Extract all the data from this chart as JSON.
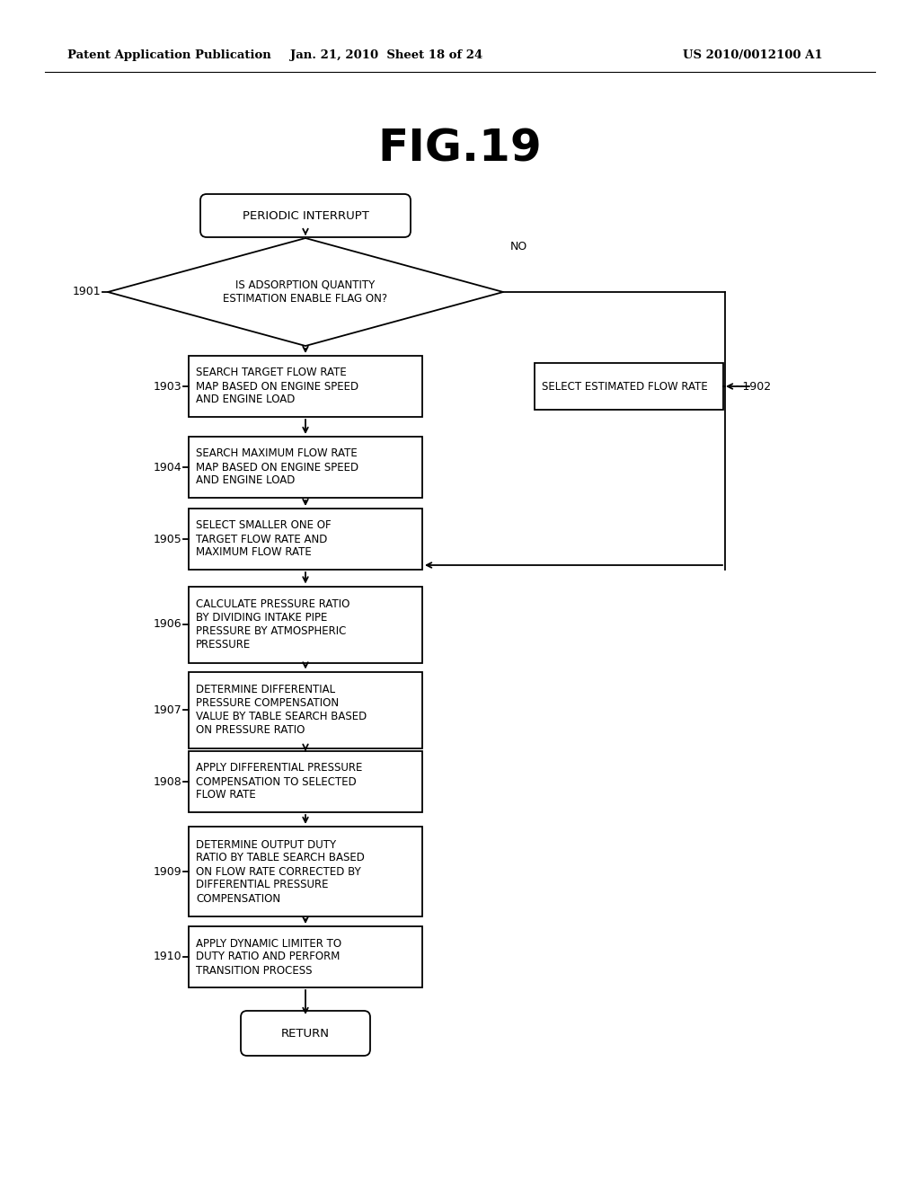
{
  "title": "FIG.19",
  "header_left": "Patent Application Publication",
  "header_mid": "Jan. 21, 2010  Sheet 18 of 24",
  "header_right": "US 2010/0012100 A1",
  "bg_color": "#ffffff",
  "text_color": "#000000",
  "fig_width": 10.24,
  "fig_height": 13.2,
  "dpi": 100
}
